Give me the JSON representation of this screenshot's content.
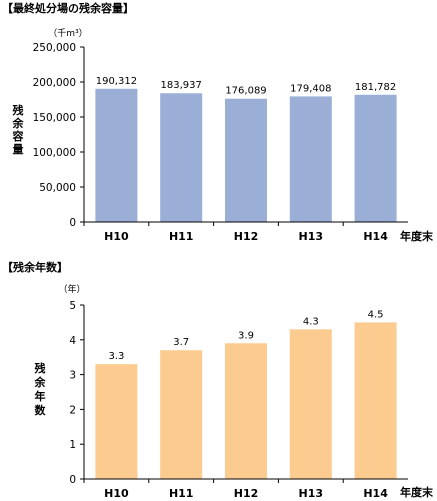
{
  "chart_data": [
    {
      "type": "bar",
      "title": "【最終処分場の残余容量】",
      "unit_label": "（千m³）",
      "ylabel": "残余容量",
      "xlabel": "年度末",
      "categories": [
        "H10",
        "H11",
        "H12",
        "H13",
        "H14"
      ],
      "values": [
        190312,
        183937,
        176089,
        179408,
        181782
      ],
      "value_labels": [
        "190,312",
        "183,937",
        "176,089",
        "179,408",
        "181,782"
      ],
      "ylim": [
        0,
        250000
      ],
      "yticks": [
        "0",
        "50,000",
        "100,000",
        "150,000",
        "200,000",
        "250,000"
      ],
      "bar_color": "#9aaed6",
      "grid": false,
      "legend": "none"
    },
    {
      "type": "bar",
      "title": "【残余年数】",
      "unit_label": "（年）",
      "ylabel": "残余年数",
      "xlabel": "年度末",
      "categories": [
        "H10",
        "H11",
        "H12",
        "H13",
        "H14"
      ],
      "values": [
        3.3,
        3.7,
        3.9,
        4.3,
        4.5
      ],
      "value_labels": [
        "3.3",
        "3.7",
        "3.9",
        "4.3",
        "4.5"
      ],
      "ylim": [
        0,
        5
      ],
      "yticks": [
        "0",
        "1",
        "2",
        "3",
        "4",
        "5"
      ],
      "bar_color": "#fccb8f",
      "grid": false,
      "legend": "none"
    }
  ]
}
